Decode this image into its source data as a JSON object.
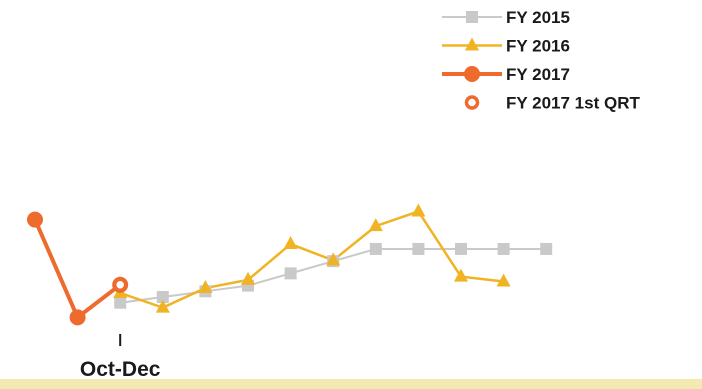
{
  "chart_data": {
    "type": "line",
    "categories": [
      "",
      "",
      "Oct-Dec",
      "",
      "",
      "",
      "",
      "",
      "",
      "",
      "",
      "",
      ""
    ],
    "tick_labels": [
      {
        "index": 2,
        "label": "Oct-Dec"
      }
    ],
    "series": [
      {
        "name": "FY 2015",
        "color": "#c9c9c9",
        "marker": "square",
        "values": [
          null,
          null,
          29,
          32.5,
          36,
          39.5,
          47,
          54.5,
          62,
          62,
          62,
          62,
          62
        ]
      },
      {
        "name": "FY 2016",
        "color": "#f0b323",
        "marker": "triangle",
        "values": [
          null,
          null,
          35,
          26,
          38,
          43,
          65,
          55,
          76,
          85,
          45,
          42,
          null
        ]
      },
      {
        "name": "FY 2017",
        "color": "#ee6a2d",
        "marker": "circle",
        "values": [
          80,
          20,
          40,
          null,
          null,
          null,
          null,
          null,
          null,
          null,
          null,
          null,
          null
        ]
      },
      {
        "name": "FY 2017 1st QRT",
        "color": "#ee6a2d",
        "marker": "open-circle",
        "values": [
          null,
          null,
          40,
          null,
          null,
          null,
          null,
          null,
          null,
          null,
          null,
          null,
          null
        ]
      }
    ],
    "ylim": [
      0,
      100
    ],
    "grid": false,
    "legend_position": "top-right",
    "band_color": "#f3eab2"
  }
}
